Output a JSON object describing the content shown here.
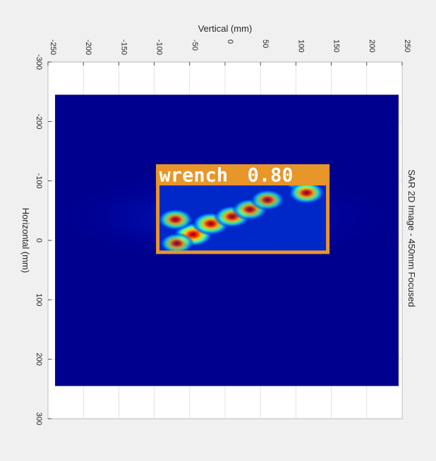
{
  "chart_data": {
    "type": "heatmap",
    "title": "SAR 2D Image - 450mm Focused",
    "xlabel": "Vertical (mm)",
    "ylabel": "Horizontal (mm)",
    "xlim": [
      -250,
      250
    ],
    "ylim": [
      -300,
      300
    ],
    "x_ticks": [
      -250,
      -200,
      -150,
      -100,
      -50,
      0,
      50,
      100,
      150,
      200,
      250
    ],
    "x_tick_labels": [
      "-250",
      "-200",
      "-150",
      "-100",
      "-50",
      "0",
      "50",
      "100",
      "150",
      "200",
      "250"
    ],
    "y_ticks": [
      -300,
      -200,
      -100,
      0,
      100,
      200,
      300
    ],
    "y_tick_labels": [
      "-300",
      "-200",
      "-100",
      "0",
      "100",
      "200",
      "300"
    ],
    "image_extent": {
      "x": [
        -240,
        245
      ],
      "y": [
        -245,
        245
      ]
    },
    "grid": true,
    "colormap": "jet",
    "background_color": "#00008f",
    "hotspots": [
      {
        "x": -45,
        "y": -10,
        "intensity": 1.0
      },
      {
        "x": -20,
        "y": -28,
        "intensity": 0.9
      },
      {
        "x": 10,
        "y": -40,
        "intensity": 0.85
      },
      {
        "x": 35,
        "y": -52,
        "intensity": 0.8
      },
      {
        "x": 60,
        "y": -68,
        "intensity": 0.75
      },
      {
        "x": 110,
        "y": -100,
        "intensity": 0.9
      },
      {
        "x": 115,
        "y": -80,
        "intensity": 0.85
      },
      {
        "x": -70,
        "y": -35,
        "intensity": 0.8
      },
      {
        "x": -68,
        "y": 5,
        "intensity": 0.75
      }
    ],
    "detection": {
      "label": "wrench",
      "score": "0.80",
      "box": {
        "x": [
          -95,
          145
        ],
        "y": [
          -125,
          20
        ]
      },
      "color": "#e8952a"
    }
  }
}
